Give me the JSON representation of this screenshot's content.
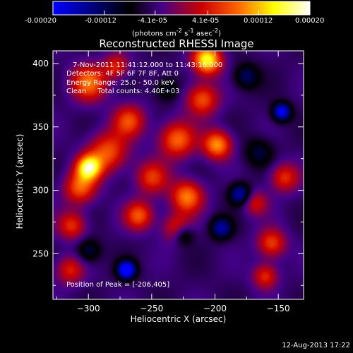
{
  "title": "Reconstructed RHESSI Image",
  "footer_date": "12-Aug-2013 17:22",
  "colorbar": {
    "tick_labels": [
      "-0.00020",
      "-0.00012",
      "-4.1e-05",
      "4.1e-05",
      "0.00012",
      "0.00020"
    ],
    "units_html": "(photons cm<sup>-2</sup> s<sup>-1</sup> asec<sup>-2</sup>)",
    "range": [
      -0.0002,
      0.0002
    ]
  },
  "annotations": {
    "time_range": "7-Nov-2011 11:41:12.000 to 11:43:16.000",
    "detectors": "Detectors: 4F 5F 6F 7F 8F, Att 0",
    "energy": "Energy Range: 25.0 - 50.0 keV",
    "method_counts": "Clean     Total counts: 4.40E+03",
    "peak": "Position of Peak = [-206,405]"
  },
  "chart_data": {
    "type": "heatmap",
    "title": "Reconstructed RHESSI Image",
    "xlabel": "Heliocentric X (arcsec)",
    "ylabel": "Heliocentric Y (arcsec)",
    "xlim": [
      -328,
      -130
    ],
    "ylim": [
      214,
      410
    ],
    "xticks": [
      -300,
      -250,
      -200,
      -150
    ],
    "yticks": [
      250,
      300,
      350,
      400
    ],
    "colormap": [
      "#0000ff",
      "#000000",
      "#440088",
      "#cc0000",
      "#ff6600",
      "#ffff00",
      "#ffffff"
    ],
    "blobs": [
      {
        "x": -300,
        "y": 385,
        "amp": 0.00013,
        "s": 10
      },
      {
        "x": -268,
        "y": 355,
        "amp": 0.00011,
        "s": 9
      },
      {
        "x": -285,
        "y": 330,
        "amp": 0.00012,
        "s": 11
      },
      {
        "x": -300,
        "y": 318,
        "amp": 0.00019,
        "s": 7
      },
      {
        "x": -307,
        "y": 302,
        "amp": 0.00012,
        "s": 9
      },
      {
        "x": -230,
        "y": 340,
        "amp": 0.00013,
        "s": 10
      },
      {
        "x": -198,
        "y": 336,
        "amp": 0.00015,
        "s": 8
      },
      {
        "x": -210,
        "y": 372,
        "amp": 0.00012,
        "s": 9
      },
      {
        "x": -206,
        "y": 403,
        "amp": 0.0002,
        "s": 8
      },
      {
        "x": -250,
        "y": 310,
        "amp": 0.0001,
        "s": 9
      },
      {
        "x": -222,
        "y": 295,
        "amp": 0.00014,
        "s": 9
      },
      {
        "x": -260,
        "y": 280,
        "amp": 0.00012,
        "s": 8
      },
      {
        "x": -230,
        "y": 270,
        "amp": 0.0001,
        "s": 8
      },
      {
        "x": -313,
        "y": 272,
        "amp": 0.0001,
        "s": 8
      },
      {
        "x": -278,
        "y": 398,
        "amp": 9e-05,
        "s": 7
      },
      {
        "x": -145,
        "y": 310,
        "amp": 0.0001,
        "s": 8
      },
      {
        "x": -155,
        "y": 258,
        "amp": 0.00011,
        "s": 8
      },
      {
        "x": -168,
        "y": 290,
        "amp": 8e-05,
        "s": 7
      },
      {
        "x": -160,
        "y": 232,
        "amp": 0.0001,
        "s": 7
      },
      {
        "x": -315,
        "y": 237,
        "amp": 9e-05,
        "s": 8
      },
      {
        "x": -270,
        "y": 237,
        "amp": -0.00019,
        "s": 5
      },
      {
        "x": -147,
        "y": 362,
        "amp": -0.00016,
        "s": 5
      },
      {
        "x": -180,
        "y": 297,
        "amp": -0.00012,
        "s": 6
      },
      {
        "x": -195,
        "y": 270,
        "amp": -0.00011,
        "s": 6
      },
      {
        "x": -225,
        "y": 265,
        "amp": -9e-05,
        "s": 6
      },
      {
        "x": -175,
        "y": 390,
        "amp": -8e-05,
        "s": 7
      },
      {
        "x": -300,
        "y": 252,
        "amp": -7e-05,
        "s": 7
      },
      {
        "x": -238,
        "y": 380,
        "amp": -6e-05,
        "s": 7
      },
      {
        "x": -165,
        "y": 330,
        "amp": -6e-05,
        "s": 8
      }
    ]
  }
}
